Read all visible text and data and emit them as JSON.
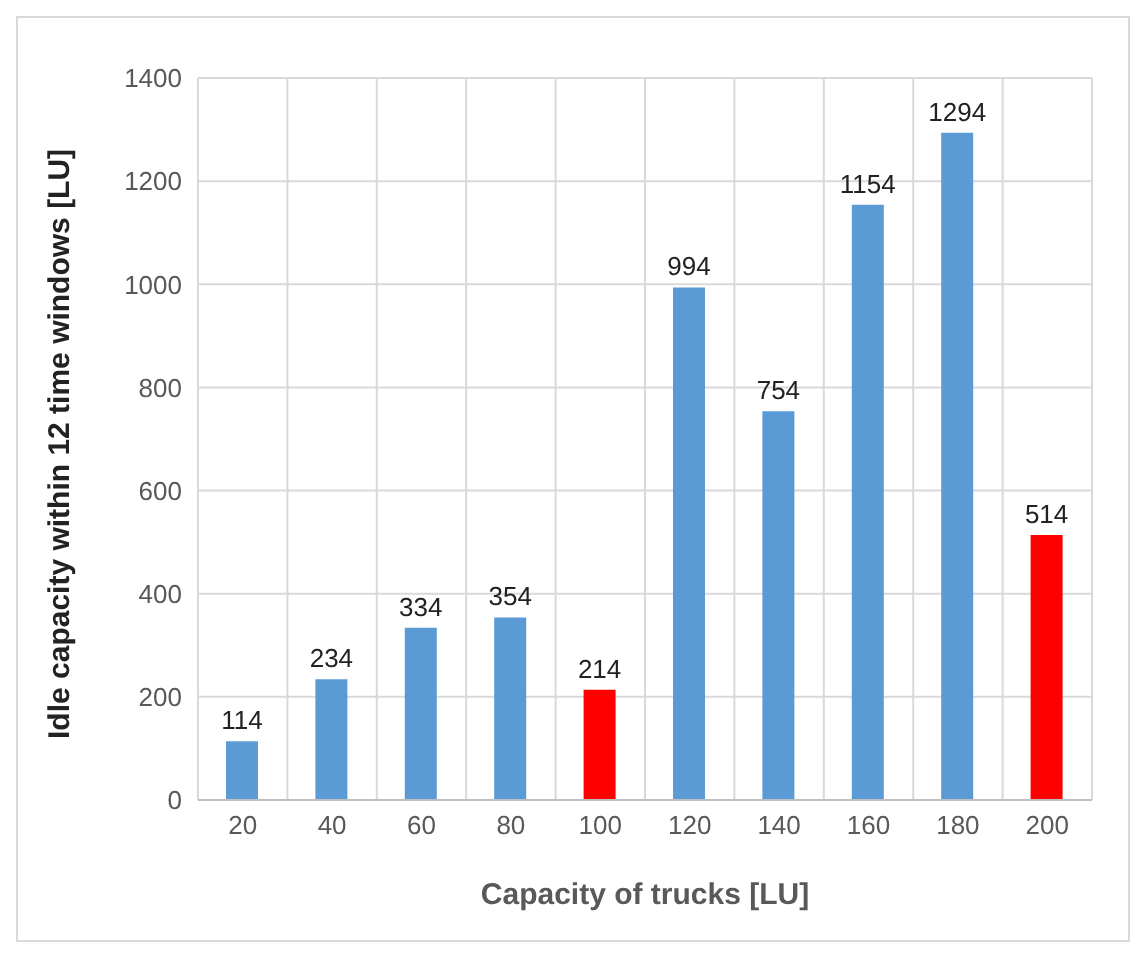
{
  "chart_data": {
    "type": "bar",
    "xlabel": "Capacity of trucks [LU]",
    "ylabel": "Idle capacity within 12 time windows [LU]",
    "categories": [
      "20",
      "40",
      "60",
      "80",
      "100",
      "120",
      "140",
      "160",
      "180",
      "200"
    ],
    "values": [
      114,
      234,
      334,
      354,
      214,
      994,
      754,
      1154,
      1294,
      514
    ],
    "colors": [
      "#5b9bd5",
      "#5b9bd5",
      "#5b9bd5",
      "#5b9bd5",
      "#ff0000",
      "#5b9bd5",
      "#5b9bd5",
      "#5b9bd5",
      "#5b9bd5",
      "#ff0000"
    ],
    "ylim": [
      0,
      1400
    ],
    "yticks": [
      0,
      200,
      400,
      600,
      800,
      1000,
      1200,
      1400
    ],
    "grid": true,
    "data_labels": true
  }
}
